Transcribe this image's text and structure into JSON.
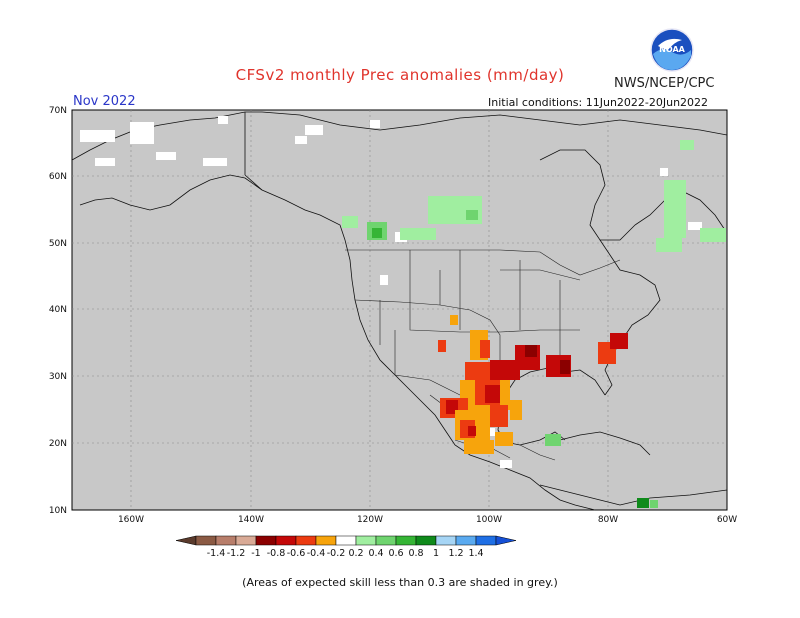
{
  "header": {
    "title": "CFSv2 monthly Prec anomalies (mm/day)",
    "agency": "NWS/NCEP/CPC",
    "month": "Nov 2022",
    "initial_conditions": "Initial conditions: 11Jun2022-20Jun2022"
  },
  "footnote": "(Areas of expected skill less than 0.3 are shaded in grey.)",
  "logo": {
    "text": "NOAA",
    "icon": "noaa-logo-icon"
  },
  "axes": {
    "lat_labels": [
      "70N",
      "60N",
      "50N",
      "40N",
      "30N",
      "20N",
      "10N"
    ],
    "lon_labels": [
      "160W",
      "140W",
      "120W",
      "100W",
      "80W",
      "60W"
    ]
  },
  "colorbar": {
    "labels": [
      "-1.4",
      "-1.2",
      "-1",
      "-0.8",
      "-0.6",
      "-0.4",
      "-0.2",
      "0.2",
      "0.4",
      "0.6",
      "0.8",
      "1",
      "1.2",
      "1.4"
    ],
    "colors": [
      "#8b5a44",
      "#b87e6b",
      "#d9aa96",
      "#8b0000",
      "#c40808",
      "#ec3b11",
      "#f7a40c",
      "#ffffff",
      "#a0eea0",
      "#6fd46f",
      "#35b535",
      "#0f8a1b",
      "#a6d5f5",
      "#5aaaf0",
      "#1f6fe5"
    ]
  },
  "colors": {
    "skill_grey": "#c8c8c8",
    "title_red": "#e0342c",
    "month_blue": "#2a36c8"
  }
}
